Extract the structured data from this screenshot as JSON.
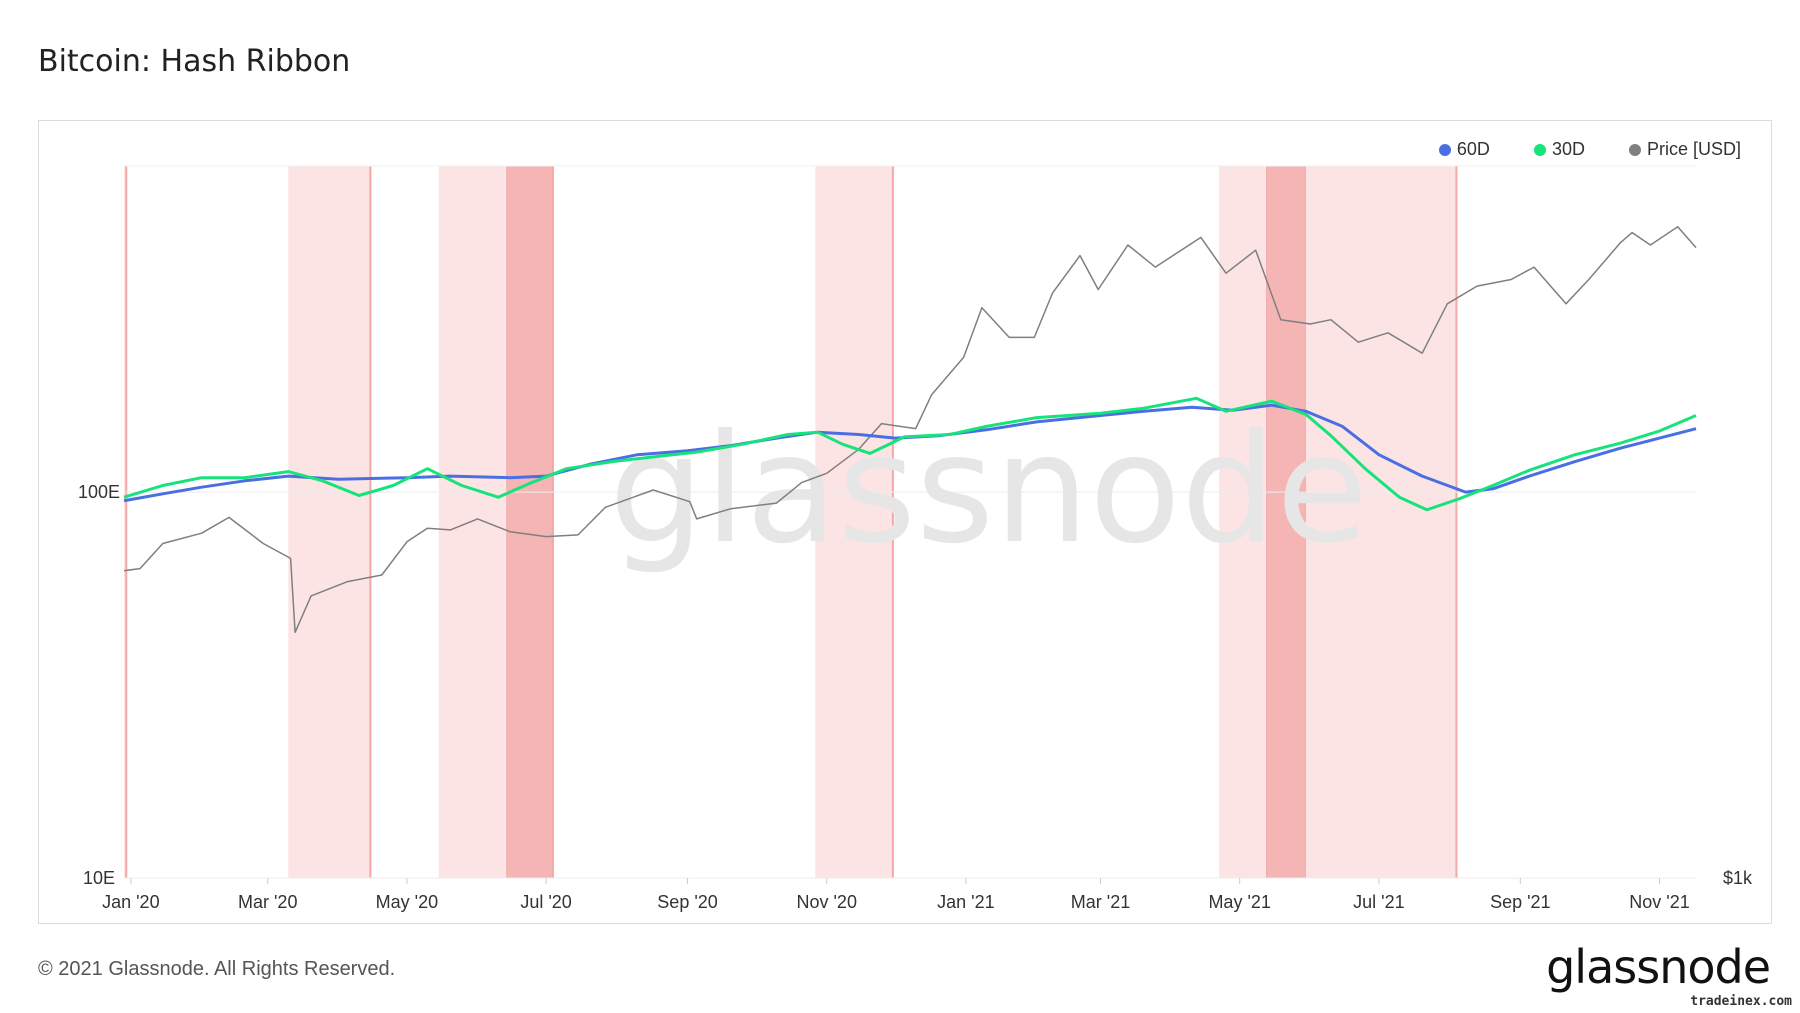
{
  "title": "Bitcoin: Hash Ribbon",
  "footer": "© 2021 Glassnode. All Rights Reserved.",
  "brand": "glassnode",
  "credit": "tradeinex.com",
  "watermark": "glassnode",
  "legend": [
    {
      "name": "60D",
      "color": "#4a6fe3"
    },
    {
      "name": "30D",
      "color": "#17e27b"
    },
    {
      "name": "Price [USD]",
      "color": "#7f7f7f"
    }
  ],
  "chart_data": {
    "type": "line",
    "title": "Bitcoin: Hash Ribbon",
    "x_axis": {
      "type": "date",
      "range": [
        "2019-12-29",
        "2021-11-17"
      ],
      "tick_labels": [
        {
          "label": "Jan '20",
          "date": "2020-01-01"
        },
        {
          "label": "Mar '20",
          "date": "2020-03-01"
        },
        {
          "label": "May '20",
          "date": "2020-05-01"
        },
        {
          "label": "Jul '20",
          "date": "2020-07-01"
        },
        {
          "label": "Sep '20",
          "date": "2020-09-01"
        },
        {
          "label": "Nov '20",
          "date": "2020-11-01"
        },
        {
          "label": "Jan '21",
          "date": "2021-01-01"
        },
        {
          "label": "Mar '21",
          "date": "2021-03-01"
        },
        {
          "label": "May '21",
          "date": "2021-05-01"
        },
        {
          "label": "Jul '21",
          "date": "2021-07-01"
        },
        {
          "label": "Sep '21",
          "date": "2021-09-01"
        },
        {
          "label": "Nov '21",
          "date": "2021-11-01"
        }
      ]
    },
    "y_left": {
      "scale": "log",
      "unit": "E",
      "range": [
        10,
        700
      ],
      "tick_labels": [
        {
          "label": "10E",
          "value": 10
        },
        {
          "label": "100E",
          "value": 100
        }
      ]
    },
    "y_right": {
      "scale": "log",
      "unit": "USD",
      "range": [
        1000,
        100000
      ],
      "tick_labels": [
        {
          "label": "$1k",
          "value": 1000
        }
      ]
    },
    "grid": true,
    "legend_position": "top-right",
    "shaded_regions": [
      {
        "start": "2019-12-29",
        "end": "2019-12-30",
        "intensity": "light"
      },
      {
        "start": "2020-03-10",
        "end": "2020-04-15",
        "intensity": "light"
      },
      {
        "start": "2020-05-15",
        "end": "2020-06-14",
        "intensity": "light"
      },
      {
        "start": "2020-06-14",
        "end": "2020-07-04",
        "intensity": "dark"
      },
      {
        "start": "2020-10-27",
        "end": "2020-11-30",
        "intensity": "light"
      },
      {
        "start": "2021-04-22",
        "end": "2021-05-13",
        "intensity": "light"
      },
      {
        "start": "2021-05-13",
        "end": "2021-05-30",
        "intensity": "dark"
      },
      {
        "start": "2021-05-30",
        "end": "2021-08-04",
        "intensity": "light"
      }
    ],
    "series": [
      {
        "name": "60D",
        "axis": "left",
        "color": "#4a6fe3",
        "points": [
          [
            "2019-12-29",
            95
          ],
          [
            "2020-01-15",
            99
          ],
          [
            "2020-02-01",
            103
          ],
          [
            "2020-02-20",
            107
          ],
          [
            "2020-03-10",
            110
          ],
          [
            "2020-04-01",
            108
          ],
          [
            "2020-05-01",
            109
          ],
          [
            "2020-05-20",
            110
          ],
          [
            "2020-06-15",
            109
          ],
          [
            "2020-07-01",
            110
          ],
          [
            "2020-07-20",
            118
          ],
          [
            "2020-08-10",
            125
          ],
          [
            "2020-09-01",
            128
          ],
          [
            "2020-09-20",
            132
          ],
          [
            "2020-10-10",
            138
          ],
          [
            "2020-10-28",
            143
          ],
          [
            "2020-11-15",
            141
          ],
          [
            "2020-12-01",
            138
          ],
          [
            "2020-12-20",
            140
          ],
          [
            "2021-01-10",
            145
          ],
          [
            "2021-02-01",
            152
          ],
          [
            "2021-03-01",
            158
          ],
          [
            "2021-03-20",
            162
          ],
          [
            "2021-04-10",
            166
          ],
          [
            "2021-04-28",
            163
          ],
          [
            "2021-05-15",
            168
          ],
          [
            "2021-05-30",
            162
          ],
          [
            "2021-06-15",
            148
          ],
          [
            "2021-07-01",
            125
          ],
          [
            "2021-07-20",
            110
          ],
          [
            "2021-08-08",
            100
          ],
          [
            "2021-08-20",
            102
          ],
          [
            "2021-09-05",
            110
          ],
          [
            "2021-09-25",
            120
          ],
          [
            "2021-10-15",
            130
          ],
          [
            "2021-11-01",
            138
          ],
          [
            "2021-11-17",
            146
          ]
        ]
      },
      {
        "name": "30D",
        "axis": "left",
        "color": "#17e27b",
        "points": [
          [
            "2019-12-29",
            97
          ],
          [
            "2020-01-15",
            104
          ],
          [
            "2020-02-01",
            109
          ],
          [
            "2020-02-20",
            109
          ],
          [
            "2020-03-10",
            113
          ],
          [
            "2020-03-25",
            107
          ],
          [
            "2020-04-10",
            98
          ],
          [
            "2020-04-25",
            104
          ],
          [
            "2020-05-10",
            115
          ],
          [
            "2020-05-25",
            104
          ],
          [
            "2020-06-10",
            97
          ],
          [
            "2020-06-25",
            106
          ],
          [
            "2020-07-10",
            115
          ],
          [
            "2020-07-30",
            120
          ],
          [
            "2020-08-20",
            124
          ],
          [
            "2020-09-05",
            127
          ],
          [
            "2020-09-25",
            133
          ],
          [
            "2020-10-15",
            141
          ],
          [
            "2020-10-28",
            143
          ],
          [
            "2020-11-08",
            133
          ],
          [
            "2020-11-20",
            126
          ],
          [
            "2020-12-05",
            139
          ],
          [
            "2020-12-25",
            141
          ],
          [
            "2021-01-10",
            148
          ],
          [
            "2021-02-01",
            156
          ],
          [
            "2021-03-01",
            160
          ],
          [
            "2021-03-20",
            165
          ],
          [
            "2021-04-12",
            175
          ],
          [
            "2021-04-25",
            162
          ],
          [
            "2021-05-15",
            172
          ],
          [
            "2021-05-30",
            159
          ],
          [
            "2021-06-10",
            140
          ],
          [
            "2021-06-25",
            115
          ],
          [
            "2021-07-10",
            97
          ],
          [
            "2021-07-22",
            90
          ],
          [
            "2021-08-05",
            96
          ],
          [
            "2021-08-20",
            104
          ],
          [
            "2021-09-05",
            114
          ],
          [
            "2021-09-25",
            125
          ],
          [
            "2021-10-15",
            134
          ],
          [
            "2021-11-01",
            144
          ],
          [
            "2021-11-17",
            158
          ]
        ]
      },
      {
        "name": "Price [USD]",
        "axis": "right",
        "color": "#7f7f7f",
        "points": [
          [
            "2019-12-29",
            7300
          ],
          [
            "2020-01-05",
            7400
          ],
          [
            "2020-01-15",
            8700
          ],
          [
            "2020-02-01",
            9300
          ],
          [
            "2020-02-13",
            10300
          ],
          [
            "2020-02-28",
            8700
          ],
          [
            "2020-03-11",
            7900
          ],
          [
            "2020-03-13",
            4900
          ],
          [
            "2020-03-20",
            6200
          ],
          [
            "2020-04-05",
            6800
          ],
          [
            "2020-04-20",
            7100
          ],
          [
            "2020-05-01",
            8800
          ],
          [
            "2020-05-10",
            9600
          ],
          [
            "2020-05-20",
            9500
          ],
          [
            "2020-06-01",
            10200
          ],
          [
            "2020-06-15",
            9400
          ],
          [
            "2020-07-01",
            9100
          ],
          [
            "2020-07-15",
            9200
          ],
          [
            "2020-07-27",
            11000
          ],
          [
            "2020-08-17",
            12300
          ],
          [
            "2020-09-02",
            11400
          ],
          [
            "2020-09-05",
            10200
          ],
          [
            "2020-09-20",
            10900
          ],
          [
            "2020-10-10",
            11300
          ],
          [
            "2020-10-21",
            12900
          ],
          [
            "2020-11-01",
            13700
          ],
          [
            "2020-11-15",
            16000
          ],
          [
            "2020-11-25",
            18900
          ],
          [
            "2020-12-10",
            18300
          ],
          [
            "2020-12-17",
            22800
          ],
          [
            "2020-12-31",
            29000
          ],
          [
            "2021-01-08",
            40000
          ],
          [
            "2021-01-20",
            33000
          ],
          [
            "2021-01-31",
            33000
          ],
          [
            "2021-02-08",
            44000
          ],
          [
            "2021-02-20",
            56000
          ],
          [
            "2021-02-28",
            45000
          ],
          [
            "2021-03-13",
            60000
          ],
          [
            "2021-03-25",
            52000
          ],
          [
            "2021-04-14",
            63000
          ],
          [
            "2021-04-25",
            50000
          ],
          [
            "2021-05-08",
            58000
          ],
          [
            "2021-05-19",
            37000
          ],
          [
            "2021-06-01",
            36000
          ],
          [
            "2021-06-10",
            37000
          ],
          [
            "2021-06-22",
            32000
          ],
          [
            "2021-07-05",
            34000
          ],
          [
            "2021-07-20",
            29800
          ],
          [
            "2021-07-31",
            41000
          ],
          [
            "2021-08-13",
            46000
          ],
          [
            "2021-08-28",
            48000
          ],
          [
            "2021-09-07",
            52000
          ],
          [
            "2021-09-21",
            41000
          ],
          [
            "2021-10-01",
            48000
          ],
          [
            "2021-10-15",
            61000
          ],
          [
            "2021-10-20",
            65000
          ],
          [
            "2021-10-28",
            60000
          ],
          [
            "2021-11-09",
            67500
          ],
          [
            "2021-11-17",
            59000
          ]
        ]
      }
    ]
  }
}
